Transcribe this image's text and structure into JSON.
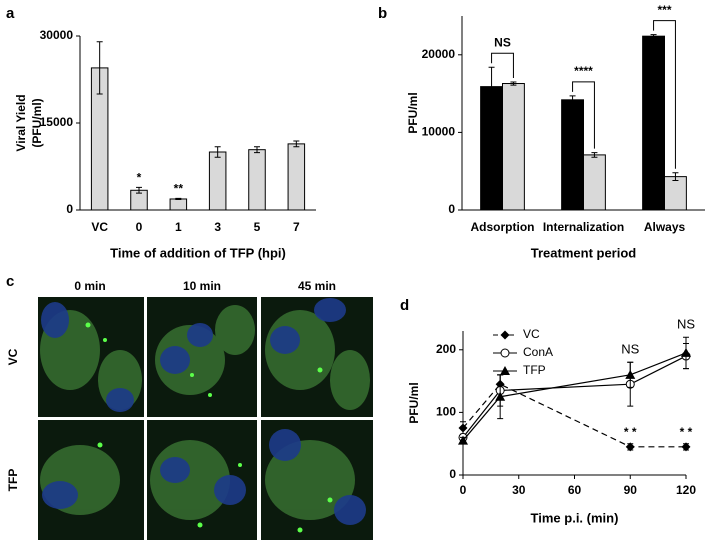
{
  "chart_data": [
    {
      "panel": "a",
      "type": "bar",
      "ylabel": [
        "Viral Yield",
        "(PFU/ml)"
      ],
      "xlabel": "Time of addition of TFP  (hpi)",
      "categories": [
        "VC",
        "0",
        "1",
        "3",
        "5",
        "7"
      ],
      "values": [
        24500,
        3400,
        1900,
        10000,
        10400,
        11400
      ],
      "errors": [
        4500,
        500,
        100,
        900,
        500,
        500
      ],
      "value_annotations": [
        null,
        "*",
        "**",
        null,
        null,
        null
      ],
      "color": "#d9d9d9",
      "ylim": [
        0,
        30000
      ],
      "yticks": [
        0,
        15000,
        30000
      ]
    },
    {
      "panel": "b",
      "type": "grouped_bar",
      "ylabel": "PFU/ml",
      "xlabel": "Treatment period",
      "categories": [
        "Adsorption",
        "Internalization",
        "Always"
      ],
      "series": [
        {
          "color": "#000000",
          "values": [
            15900,
            14200,
            22400
          ],
          "errors": [
            2500,
            500,
            200
          ]
        },
        {
          "color": "#d9d9d9",
          "values": [
            16300,
            7100,
            4300
          ],
          "errors": [
            200,
            300,
            500
          ]
        }
      ],
      "annotations": [
        "NS",
        "****",
        "***"
      ],
      "ylim": [
        0,
        25000
      ],
      "yticks": [
        0,
        10000,
        20000
      ]
    },
    {
      "panel": "d",
      "type": "line",
      "ylabel": "PFU/ml",
      "xlabel": "Time p.i. (min)",
      "x": [
        0,
        20,
        90,
        120
      ],
      "series": [
        {
          "name": "VC",
          "color": "#000000",
          "dashed": true,
          "marker": "diamond",
          "values": [
            75,
            145,
            45,
            45
          ],
          "errors": [
            10,
            15,
            5,
            5
          ],
          "value_annotations": [
            null,
            null,
            "* *",
            "* *"
          ]
        },
        {
          "name": "ConA",
          "color": "#000000",
          "dashed": false,
          "marker": "circle",
          "values": [
            60,
            135,
            145,
            190
          ],
          "errors": [
            5,
            25,
            35,
            20
          ]
        },
        {
          "name": "TFP",
          "color": "#000000",
          "dashed": false,
          "marker": "triangle",
          "values": [
            55,
            125,
            160,
            195
          ],
          "errors": [
            5,
            35,
            20,
            25
          ]
        }
      ],
      "annotations": [
        null,
        null,
        "NS",
        "NS"
      ],
      "xlim": [
        0,
        120
      ],
      "xticks": [
        0,
        30,
        60,
        90,
        120
      ],
      "ylim": [
        0,
        230
      ],
      "yticks": [
        0,
        100,
        200
      ],
      "legend": "upper left"
    }
  ],
  "panel_c": {
    "panel": "c",
    "columns": [
      "0 min",
      "10 min",
      "45 min"
    ],
    "rows": [
      "VC",
      "TFP"
    ]
  }
}
